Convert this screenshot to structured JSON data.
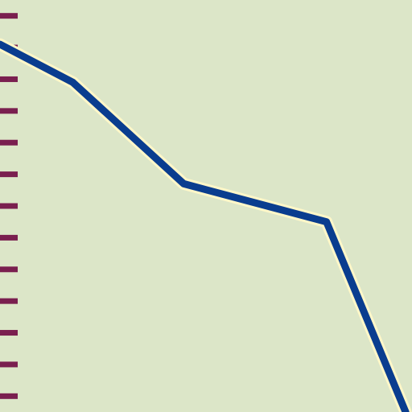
{
  "chart_data": {
    "type": "line",
    "colors": {
      "background": "#dce6c8",
      "line": "#0a3d8f",
      "line_halo": "#fff7c8",
      "tick": "#7a1f4f"
    },
    "grid": false,
    "legend": "none",
    "ylim": [
      0,
      13
    ],
    "xlim": [
      0,
      13
    ],
    "y_ticks": [
      0.5,
      1.5,
      2.5,
      3.5,
      4.5,
      5.5,
      6.5,
      7.5,
      8.5,
      9.5,
      10.5,
      11.5,
      12.5
    ],
    "series": [
      {
        "x": [
          0,
          2.3,
          5.8,
          10.3,
          12.8
        ],
        "y": [
          11.6,
          10.4,
          7.2,
          6.0,
          0
        ]
      }
    ]
  }
}
